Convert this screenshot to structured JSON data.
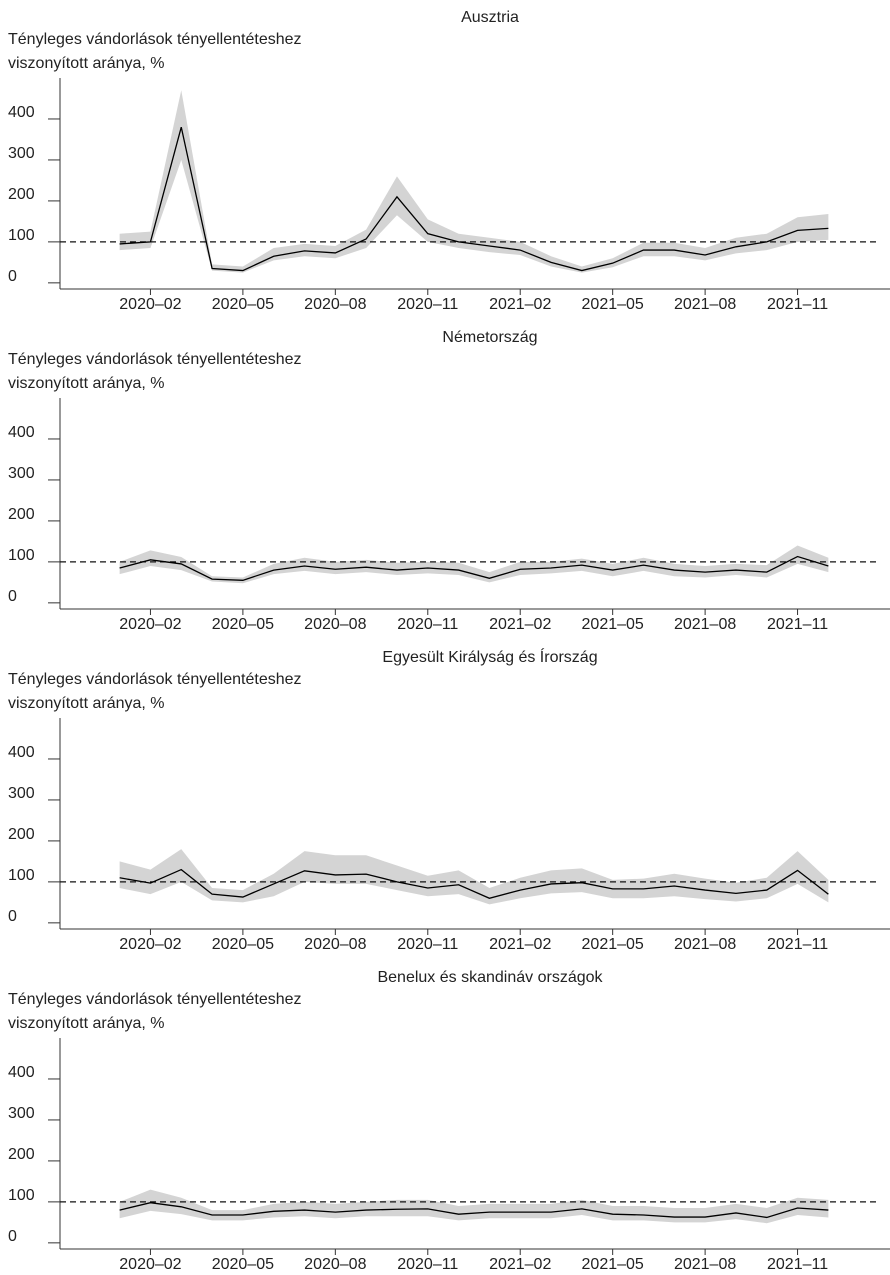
{
  "chart_data": [
    {
      "type": "line",
      "title": "Ausztria",
      "y_label": "Tényleges vándorlások tényellentéteshez viszonyított aránya, %",
      "x": [
        "2020-01",
        "2020-02",
        "2020-03",
        "2020-04",
        "2020-05",
        "2020-06",
        "2020-07",
        "2020-08",
        "2020-09",
        "2020-10",
        "2020-11",
        "2020-12",
        "2021-01",
        "2021-02",
        "2021-03",
        "2021-04",
        "2021-05",
        "2021-06",
        "2021-07",
        "2021-08",
        "2021-09",
        "2021-10",
        "2021-11",
        "2021-12"
      ],
      "xlim": [
        "2019-11",
        "2022-02"
      ],
      "xticks": [
        {
          "value": "2020-02",
          "label": "2020–02"
        },
        {
          "value": "2020-05",
          "label": "2020–05"
        },
        {
          "value": "2020-08",
          "label": "2020–08"
        },
        {
          "value": "2020-11",
          "label": "2020–11"
        },
        {
          "value": "2021-02",
          "label": "2021–02"
        },
        {
          "value": "2021-05",
          "label": "2021–05"
        },
        {
          "value": "2021-08",
          "label": "2021–08"
        },
        {
          "value": "2021-11",
          "label": "2021–11"
        }
      ],
      "ylim": [
        -15,
        500
      ],
      "yticks": [
        0,
        100,
        200,
        300,
        400
      ],
      "reference_line": 100,
      "values": [
        95,
        100,
        380,
        35,
        30,
        65,
        78,
        73,
        107,
        210,
        120,
        100,
        90,
        80,
        50,
        30,
        48,
        80,
        80,
        68,
        88,
        100,
        128,
        133
      ],
      "lower": [
        80,
        85,
        300,
        30,
        25,
        55,
        65,
        60,
        85,
        165,
        100,
        85,
        75,
        68,
        40,
        25,
        38,
        65,
        65,
        55,
        72,
        80,
        100,
        105
      ],
      "upper": [
        120,
        125,
        470,
        45,
        40,
        85,
        95,
        90,
        130,
        260,
        155,
        120,
        110,
        100,
        65,
        40,
        60,
        98,
        98,
        85,
        110,
        120,
        160,
        168
      ],
      "color": "#000000",
      "band_color": "#d4d4d4"
    },
    {
      "type": "line",
      "title": "Németország",
      "y_label": "Tényleges vándorlások tényellentéteshez viszonyított aránya, %",
      "x": [
        "2020-01",
        "2020-02",
        "2020-03",
        "2020-04",
        "2020-05",
        "2020-06",
        "2020-07",
        "2020-08",
        "2020-09",
        "2020-10",
        "2020-11",
        "2020-12",
        "2021-01",
        "2021-02",
        "2021-03",
        "2021-04",
        "2021-05",
        "2021-06",
        "2021-07",
        "2021-08",
        "2021-09",
        "2021-10",
        "2021-11",
        "2021-12"
      ],
      "xlim": [
        "2019-11",
        "2022-02"
      ],
      "xticks": [
        {
          "value": "2020-02",
          "label": "2020–02"
        },
        {
          "value": "2020-05",
          "label": "2020–05"
        },
        {
          "value": "2020-08",
          "label": "2020–08"
        },
        {
          "value": "2020-11",
          "label": "2020–11"
        },
        {
          "value": "2021-02",
          "label": "2021–02"
        },
        {
          "value": "2021-05",
          "label": "2021–05"
        },
        {
          "value": "2021-08",
          "label": "2021–08"
        },
        {
          "value": "2021-11",
          "label": "2021–11"
        }
      ],
      "ylim": [
        -15,
        500
      ],
      "yticks": [
        0,
        100,
        200,
        300,
        400
      ],
      "reference_line": 100,
      "values": [
        85,
        105,
        95,
        58,
        55,
        80,
        90,
        82,
        87,
        80,
        85,
        80,
        60,
        82,
        85,
        92,
        80,
        92,
        80,
        75,
        80,
        75,
        113,
        90
      ],
      "lower": [
        70,
        90,
        80,
        52,
        48,
        70,
        78,
        70,
        75,
        68,
        72,
        68,
        50,
        68,
        72,
        78,
        65,
        78,
        65,
        62,
        68,
        62,
        95,
        75
      ],
      "upper": [
        100,
        128,
        112,
        65,
        62,
        95,
        110,
        100,
        105,
        98,
        100,
        98,
        75,
        100,
        100,
        108,
        95,
        110,
        95,
        90,
        95,
        92,
        140,
        110
      ],
      "color": "#000000",
      "band_color": "#d4d4d4"
    },
    {
      "type": "line",
      "title": "Egyesült Királyság és Írország",
      "y_label": "Tényleges vándorlások tényellentéteshez viszonyított aránya, %",
      "x": [
        "2020-01",
        "2020-02",
        "2020-03",
        "2020-04",
        "2020-05",
        "2020-06",
        "2020-07",
        "2020-08",
        "2020-09",
        "2020-10",
        "2020-11",
        "2020-12",
        "2021-01",
        "2021-02",
        "2021-03",
        "2021-04",
        "2021-05",
        "2021-06",
        "2021-07",
        "2021-08",
        "2021-09",
        "2021-10",
        "2021-11",
        "2021-12"
      ],
      "xlim": [
        "2019-11",
        "2022-02"
      ],
      "xticks": [
        {
          "value": "2020-02",
          "label": "2020–02"
        },
        {
          "value": "2020-05",
          "label": "2020–05"
        },
        {
          "value": "2020-08",
          "label": "2020–08"
        },
        {
          "value": "2020-11",
          "label": "2020–11"
        },
        {
          "value": "2021-02",
          "label": "2021–02"
        },
        {
          "value": "2021-05",
          "label": "2021–05"
        },
        {
          "value": "2021-08",
          "label": "2021–08"
        },
        {
          "value": "2021-11",
          "label": "2021–11"
        }
      ],
      "ylim": [
        -15,
        500
      ],
      "yticks": [
        0,
        100,
        200,
        300,
        400
      ],
      "reference_line": 100,
      "values": [
        110,
        97,
        130,
        70,
        63,
        95,
        127,
        117,
        119,
        100,
        85,
        93,
        60,
        80,
        95,
        98,
        83,
        83,
        90,
        80,
        72,
        80,
        128,
        70
      ],
      "lower": [
        85,
        70,
        100,
        55,
        50,
        65,
        100,
        95,
        95,
        80,
        65,
        70,
        45,
        60,
        72,
        75,
        60,
        60,
        65,
        58,
        52,
        60,
        95,
        50
      ],
      "upper": [
        150,
        130,
        180,
        85,
        80,
        120,
        175,
        165,
        165,
        140,
        115,
        128,
        85,
        110,
        128,
        133,
        105,
        108,
        120,
        108,
        98,
        110,
        175,
        105
      ],
      "color": "#000000",
      "band_color": "#d4d4d4"
    },
    {
      "type": "line",
      "title": "Benelux és skandináv országok",
      "y_label": "Tényleges vándorlások tényellentéteshez viszonyított aránya, %",
      "x": [
        "2020-01",
        "2020-02",
        "2020-03",
        "2020-04",
        "2020-05",
        "2020-06",
        "2020-07",
        "2020-08",
        "2020-09",
        "2020-10",
        "2020-11",
        "2020-12",
        "2021-01",
        "2021-02",
        "2021-03",
        "2021-04",
        "2021-05",
        "2021-06",
        "2021-07",
        "2021-08",
        "2021-09",
        "2021-10",
        "2021-11",
        "2021-12"
      ],
      "xlim": [
        "2019-11",
        "2022-02"
      ],
      "xticks": [
        {
          "value": "2020-02",
          "label": "2020–02"
        },
        {
          "value": "2020-05",
          "label": "2020–05"
        },
        {
          "value": "2020-08",
          "label": "2020–08"
        },
        {
          "value": "2020-11",
          "label": "2020–11"
        },
        {
          "value": "2021-02",
          "label": "2021–02"
        },
        {
          "value": "2021-05",
          "label": "2021–05"
        },
        {
          "value": "2021-08",
          "label": "2021–08"
        },
        {
          "value": "2021-11",
          "label": "2021–11"
        }
      ],
      "ylim": [
        -15,
        500
      ],
      "yticks": [
        0,
        100,
        200,
        300,
        400
      ],
      "reference_line": 100,
      "values": [
        80,
        98,
        88,
        68,
        68,
        77,
        80,
        75,
        80,
        82,
        83,
        70,
        75,
        75,
        75,
        83,
        70,
        68,
        63,
        63,
        73,
        62,
        85,
        80
      ],
      "lower": [
        60,
        78,
        70,
        55,
        55,
        62,
        65,
        60,
        65,
        65,
        65,
        55,
        60,
        60,
        60,
        68,
        55,
        55,
        50,
        50,
        58,
        48,
        68,
        62
      ],
      "upper": [
        100,
        130,
        110,
        80,
        80,
        95,
        100,
        95,
        100,
        105,
        105,
        90,
        95,
        95,
        95,
        105,
        90,
        90,
        85,
        85,
        95,
        85,
        110,
        105
      ],
      "color": "#000000",
      "band_color": "#d4d4d4"
    }
  ]
}
